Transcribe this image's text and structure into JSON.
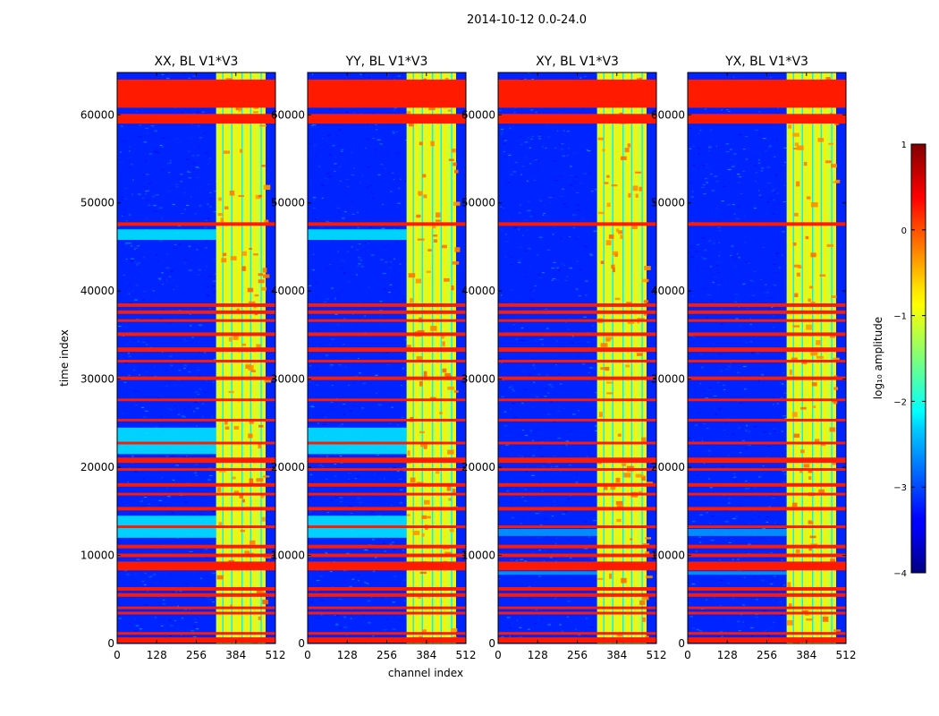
{
  "chart_data": {
    "type": "heatmap",
    "suptitle": "2014-10-12 0.0-24.0",
    "xlabel": "channel index",
    "ylabel": "time index",
    "xlim": [
      0,
      512
    ],
    "ylim": [
      0,
      64800
    ],
    "xticks": [
      0,
      128,
      256,
      384,
      512
    ],
    "yticks": [
      0,
      10000,
      20000,
      30000,
      40000,
      50000,
      60000
    ],
    "colorbar": {
      "label": "log₁₀ amplitude",
      "range": [
        -4,
        1
      ],
      "ticks": [
        1,
        0,
        -1,
        -2,
        -3,
        -4
      ],
      "tick_labels": [
        "1",
        "0",
        "−1",
        "−2",
        "−3",
        "−4"
      ],
      "colormap": "jet"
    },
    "panels": [
      {
        "title": "XX, BL V1*V3"
      },
      {
        "title": "YY, BL V1*V3"
      },
      {
        "title": "XY, BL V1*V3"
      },
      {
        "title": "YX, BL V1*V3"
      }
    ],
    "background_level": -3.2,
    "flag_level": 0.25,
    "bright_band": {
      "range": [
        320,
        480
      ],
      "level": -1.1,
      "bright_channels": [
        334,
        350,
        378,
        395,
        420,
        442,
        476
      ],
      "dark_channels": [
        342,
        371,
        404,
        432,
        466
      ]
    },
    "flagged_time_ranges": [
      [
        100,
        700
      ],
      [
        1000,
        1300
      ],
      [
        3300,
        3600
      ],
      [
        3900,
        4200
      ],
      [
        5300,
        5700
      ],
      [
        6000,
        6400
      ],
      [
        8300,
        9300
      ],
      [
        9800,
        10200
      ],
      [
        10800,
        11200
      ],
      [
        13100,
        13400
      ],
      [
        15100,
        15500
      ],
      [
        16800,
        17100
      ],
      [
        17800,
        18200
      ],
      [
        19600,
        19900
      ],
      [
        20500,
        21100
      ],
      [
        22600,
        22900
      ],
      [
        25200,
        25500
      ],
      [
        27500,
        27800
      ],
      [
        29900,
        30300
      ],
      [
        31900,
        32200
      ],
      [
        33100,
        33600
      ],
      [
        34900,
        35300
      ],
      [
        36500,
        36800
      ],
      [
        37400,
        37800
      ],
      [
        38200,
        38600
      ],
      [
        47400,
        47800
      ],
      [
        59000,
        60100
      ],
      [
        60800,
        64000
      ]
    ],
    "pol_features": {
      "parallel": {
        "elevated_time_ranges": [
          [
            12000,
            14500
          ],
          [
            21500,
            24500
          ],
          [
            45800,
            47000
          ]
        ],
        "elevated_level": -2.2
      },
      "cross": {
        "elevated_time_ranges": [
          [
            7800,
            8200
          ],
          [
            12200,
            13000
          ]
        ],
        "elevated_level": -2.6
      }
    }
  }
}
